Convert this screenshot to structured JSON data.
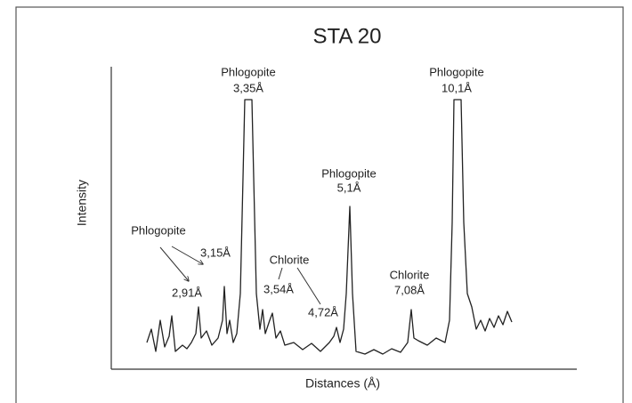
{
  "chart_data": {
    "type": "diffractogram",
    "title": "STA 20",
    "xlabel": "Distances (Å)",
    "ylabel": "Intensity",
    "annotations": [
      "Phlogopite",
      "3,35Å",
      "Phlogopite",
      "10,1Å",
      "Phlogopite",
      "5,1Å",
      "Phlogopite",
      "3,15Å",
      "2,91Å",
      "Chlorite",
      "3,54Å",
      "4,72Å",
      "Chlorite",
      "7,08Å"
    ]
  }
}
